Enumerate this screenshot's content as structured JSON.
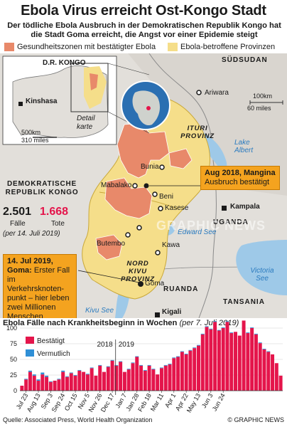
{
  "header": {
    "title": "Ebola Virus erreicht Ost-Kongo Stadt",
    "subtitle": "Der tödliche Ebola Ausbruch in der Demokratischen Republik Kongo hat die Stadt Goma erreicht, die Angst vor einer Epidemie steigt"
  },
  "legend_map": {
    "zones": "Gesundheitszonen mit bestätigter Ebola",
    "provinces": "Ebola-betroffene Provinzen"
  },
  "colors": {
    "zone": "#e8896a",
    "province": "#f5de8a",
    "confirmed": "#e4154b",
    "probable": "#2f8fd6",
    "callout": "#f4a31f",
    "land": "#e2dfda",
    "water": "#9ec9e8"
  },
  "map": {
    "inset_country": "D.R. KONGO",
    "inset_capital": "Kinshasa",
    "inset_detail": "Detail karte",
    "inset_scale_km": "500km",
    "inset_scale_mi": "310 miles",
    "scale_km": "100km",
    "scale_mi": "60 miles",
    "country_drc": "DEMOKRATISCHE REPUBLIK KONGO",
    "country_sudsudan": "SÜDSUDAN",
    "country_uganda": "UGANDA",
    "country_ruanda": "RUANDA",
    "country_tansania": "TANSANIA",
    "province_ituri": "ITURI PROVINZ",
    "province_nordkivu": "NORD KIVU PROVINZ",
    "lake_albert": "Lake Albert",
    "lake_edward": "Edward See",
    "lake_kivu": "Kivu See",
    "lake_victoria": "Victoria See",
    "cities": {
      "ariwara": "Ariwara",
      "bunia": "Bunia",
      "mabalako": "Mabalako",
      "beni": "Beni",
      "kasese": "Kasese",
      "butembo": "Butembo",
      "kawa": "Kawa",
      "goma": "Goma",
      "kigali": "Kigali",
      "kampala": "Kampala"
    },
    "stats": {
      "cases": "2.501",
      "cases_label": "Fälle",
      "deaths": "1.668",
      "deaths_label": "Tote",
      "date": "(per 14. Juli 2019)"
    },
    "callout_mangina_title": "Aug 2018, Mangina",
    "callout_mangina_text": "Ausbruch bestätigt",
    "callout_goma_title": "14. Jul 2019, Goma:",
    "callout_goma_text": "Erster Fall im Verkehrsknoten-punkt – hier leben zwei Millionen Menschen",
    "watermark": "GRAPHIC NEWS"
  },
  "chart_data": {
    "type": "bar",
    "title": "Ebola Fälle nach Krankheitsbeginn in Wochen",
    "subtitle": "(per 7. Juli 2019)",
    "ylim": [
      0,
      100
    ],
    "yticks": [
      0,
      25,
      50,
      75,
      100
    ],
    "year_labels": [
      "2018",
      "2019"
    ],
    "x_tick_labels": [
      "Jul 23",
      "Aug 13",
      "Sep 3",
      "Sep 24",
      "Oct 15",
      "Nov 5",
      "Nov 26",
      "Dec 17",
      "Jan 7",
      "Jan 28",
      "Feb 18",
      "Mar 11",
      "Apr 1",
      "Apr 22",
      "May 13",
      "Jun 3",
      "Jun 24"
    ],
    "series": [
      {
        "name": "Bestätigt",
        "values": [
          8,
          18,
          30,
          24,
          16,
          26,
          22,
          14,
          16,
          18,
          30,
          22,
          28,
          24,
          32,
          30,
          26,
          36,
          24,
          40,
          30,
          38,
          48,
          40,
          46,
          30,
          34,
          44,
          54,
          40,
          32,
          40,
          34,
          26,
          36,
          40,
          42,
          52,
          54,
          62,
          58,
          64,
          68,
          72,
          90,
          102,
          98,
          110,
          96,
          100,
          110,
          92,
          94,
          88,
          112,
          92,
          100,
          90,
          76,
          66,
          62,
          58,
          44,
          24
        ]
      },
      {
        "name": "Vermutlich",
        "values": [
          0,
          1,
          2,
          2,
          2,
          3,
          2,
          1,
          0,
          1,
          2,
          1,
          1,
          1,
          1,
          0,
          1,
          1,
          0,
          1,
          0,
          1,
          1,
          1,
          1,
          0,
          1,
          1,
          1,
          1,
          1,
          1,
          1,
          0,
          1,
          1,
          1,
          1,
          1,
          1,
          1,
          1,
          1,
          1,
          1,
          1,
          1,
          1,
          1,
          1,
          1,
          1,
          0,
          0,
          1,
          1,
          1,
          1,
          1,
          1,
          1,
          0,
          0,
          0
        ]
      }
    ]
  },
  "footer": {
    "source": "Quelle: Associated Press, World Health Organization",
    "credit": "© GRAPHIC NEWS"
  }
}
